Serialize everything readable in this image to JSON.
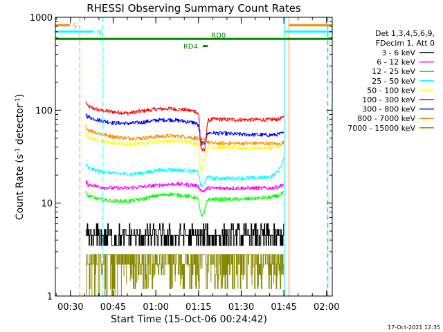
{
  "chart_data": {
    "type": "line",
    "title": "RHESSI Observing Summary Count Rates",
    "xlabel": "Start Time (15-Oct-06 00:24:42)",
    "ylabel_main": "Count Rate (s",
    "ylabel_sup1": "-1",
    "ylabel_mid": " detector",
    "ylabel_sup2": "-1",
    "ylabel_end": ")",
    "yscale": "log",
    "xlim": [
      24.7,
      122
    ],
    "ylim": [
      1,
      1000
    ],
    "x_unit": "minutes after 00:00 UT",
    "x_ticks": [
      {
        "value": 30,
        "label": "00:30"
      },
      {
        "value": 45,
        "label": "00:45"
      },
      {
        "value": 60,
        "label": "01:00"
      },
      {
        "value": 75,
        "label": "01:15"
      },
      {
        "value": 90,
        "label": "01:30"
      },
      {
        "value": 105,
        "label": "01:45"
      },
      {
        "value": 120,
        "label": "02:00"
      }
    ],
    "y_ticks": [
      {
        "value": 1,
        "label": "1"
      },
      {
        "value": 10,
        "label": "10"
      },
      {
        "value": 100,
        "label": "100"
      },
      {
        "value": 1000,
        "label": "1000"
      }
    ],
    "legend": {
      "placement": "right",
      "header_line1": "Det 1,3,4,5,6,9,",
      "header_line2": "FDecim 1, Att 0",
      "entries": [
        {
          "label": "3 - 6 keV",
          "color": "#000000"
        },
        {
          "label": "6 - 12 keV",
          "color": "#ff00ff"
        },
        {
          "label": "12 - 25 keV",
          "color": "#00ff00"
        },
        {
          "label": "25 - 50 keV",
          "color": "#00ffff"
        },
        {
          "label": "50 - 100 keV",
          "color": "#ffff00"
        },
        {
          "label": "100 - 300 keV",
          "color": "#ff0000"
        },
        {
          "label": "300 - 800 keV",
          "color": "#0000ff"
        },
        {
          "label": "800 - 7000 keV",
          "color": "#ff8800"
        },
        {
          "label": "7000 - 15000 keV",
          "color": "#888800"
        }
      ]
    },
    "series": [
      {
        "color": "#ff0000",
        "x": [
          35.3,
          36,
          40,
          45,
          50,
          55,
          60,
          65,
          70,
          74,
          75,
          75.6,
          76,
          77,
          78,
          78.5,
          80,
          90,
          100,
          103,
          104.9
        ],
        "y": [
          122,
          110,
          100,
          96,
          93,
          98,
          103,
          104,
          101,
          97,
          90,
          42,
          38,
          36,
          72,
          78,
          80,
          79,
          79,
          80,
          84
        ]
      },
      {
        "color": "#0000ff",
        "x": [
          35.3,
          36,
          40,
          45,
          50,
          55,
          60,
          65,
          70,
          74,
          75,
          75.6,
          76,
          77,
          78,
          78.5,
          80,
          90,
          100,
          103,
          104.9
        ],
        "y": [
          90,
          85,
          78,
          73,
          72,
          74,
          78,
          79,
          76,
          73,
          67,
          48,
          44,
          44,
          55,
          57,
          57,
          55,
          54,
          55,
          57
        ]
      },
      {
        "color": "#ff8800",
        "x": [
          35.3,
          36,
          40,
          45,
          50,
          55,
          60,
          65,
          70,
          74,
          75,
          75.6,
          76,
          77,
          78,
          78.5,
          80,
          90,
          100,
          103,
          104.9
        ],
        "y": [
          68,
          62,
          56,
          52,
          50,
          50,
          52,
          53,
          52,
          50,
          50,
          48,
          48,
          48,
          46,
          45,
          44,
          44,
          44,
          43,
          45
        ]
      },
      {
        "color": "#ffff00",
        "x": [
          35.3,
          36,
          40,
          45,
          50,
          55,
          60,
          65,
          70,
          74,
          75,
          75.6,
          76,
          77,
          78,
          78.5,
          80,
          90,
          100,
          103,
          104.9
        ],
        "y": [
          56,
          52,
          47,
          44,
          43,
          44,
          46,
          47,
          46,
          44,
          44,
          23,
          22,
          30,
          40,
          40,
          40,
          39,
          39,
          40,
          42
        ]
      },
      {
        "color": "#00ffff",
        "x": [
          35.3,
          36,
          40,
          45,
          50,
          55,
          60,
          65,
          70,
          74,
          75,
          75.6,
          76,
          77,
          78,
          78.5,
          80,
          90,
          100,
          103,
          104.9
        ],
        "y": [
          26,
          24,
          22,
          21,
          20.5,
          21,
          22.5,
          23,
          22.5,
          22,
          21,
          16,
          15,
          16,
          20,
          19,
          18.5,
          18.5,
          19,
          22,
          30
        ]
      },
      {
        "color": "#ff00ff",
        "x": [
          35.3,
          36,
          40,
          45,
          50,
          55,
          60,
          65,
          70,
          74,
          75,
          75.6,
          76,
          77,
          78,
          78.5,
          80,
          90,
          100,
          103,
          104.9
        ],
        "y": [
          17,
          16,
          15,
          14.5,
          14.5,
          15,
          15.5,
          16,
          16,
          15.5,
          15,
          14,
          13.5,
          13.5,
          14.5,
          14.5,
          14.5,
          14.5,
          14.5,
          15,
          16
        ]
      },
      {
        "color": "#00ff00",
        "x": [
          35.3,
          36,
          40,
          45,
          50,
          55,
          60,
          65,
          70,
          74,
          75,
          75.6,
          76,
          77,
          78,
          78.5,
          80,
          90,
          100,
          103,
          104.9
        ],
        "y": [
          13,
          12,
          11,
          10.5,
          10.5,
          11,
          12,
          12.5,
          12,
          11.5,
          10.5,
          8,
          7,
          8,
          11,
          11,
          11,
          11,
          11.5,
          12,
          13
        ]
      },
      {
        "color": "#000000",
        "x": [
          35.3,
          40,
          50,
          60,
          70,
          75,
          76,
          77,
          78,
          80,
          90,
          100,
          104.9
        ],
        "y": [
          4.5,
          4,
          4,
          4,
          4,
          4,
          3.6,
          4,
          4,
          4,
          4,
          4,
          4.5
        ]
      },
      {
        "color": "#888800",
        "x": [
          35.3,
          40,
          50,
          60,
          70,
          75,
          80,
          90,
          100,
          104.9
        ],
        "y": [
          2.8,
          2.6,
          2.6,
          2.7,
          2.7,
          2.7,
          2.7,
          2.7,
          2.7,
          2.8
        ]
      }
    ],
    "markers": {
      "s_bar": {
        "label": "S",
        "color": "#ff8800",
        "x": [
          24.7,
          29.8
        ],
        "y": 820
      },
      "n_bar": {
        "label": "N",
        "color": "#00ffff",
        "x": [
          24.7,
          38.2
        ],
        "y": 700
      },
      "rd0_bar": {
        "label": "RD0",
        "color": "#008800",
        "x": [
          24.7,
          122
        ],
        "y": 585
      },
      "rd4_bar": {
        "label": "RD4",
        "color": "#008800",
        "x": [
          76.5,
          78.3
        ],
        "y": 490
      },
      "s_bar_right": {
        "color": "#ff8800",
        "x": [
          106.8,
          122
        ],
        "y": 820
      },
      "n_bar_right": {
        "color": "#00ffff",
        "x": [
          105.2,
          122
        ],
        "y": 700
      },
      "vlines": [
        {
          "x": 33.3,
          "color": "#ff8800",
          "dashed": true
        },
        {
          "x": 41.4,
          "color": "#00ffff",
          "dashed": true
        },
        {
          "x": 105.2,
          "color": "#00ffff",
          "dashed": false
        },
        {
          "x": 106.8,
          "color": "#ff8800",
          "dashed": false
        },
        {
          "x": 120.3,
          "color": "#ff8800",
          "dashed": true
        },
        {
          "x": 120.5,
          "color": "#00ffff",
          "dashed": true
        }
      ]
    }
  },
  "footer": {
    "timestamp": "17-Oct-2021 12:35"
  }
}
